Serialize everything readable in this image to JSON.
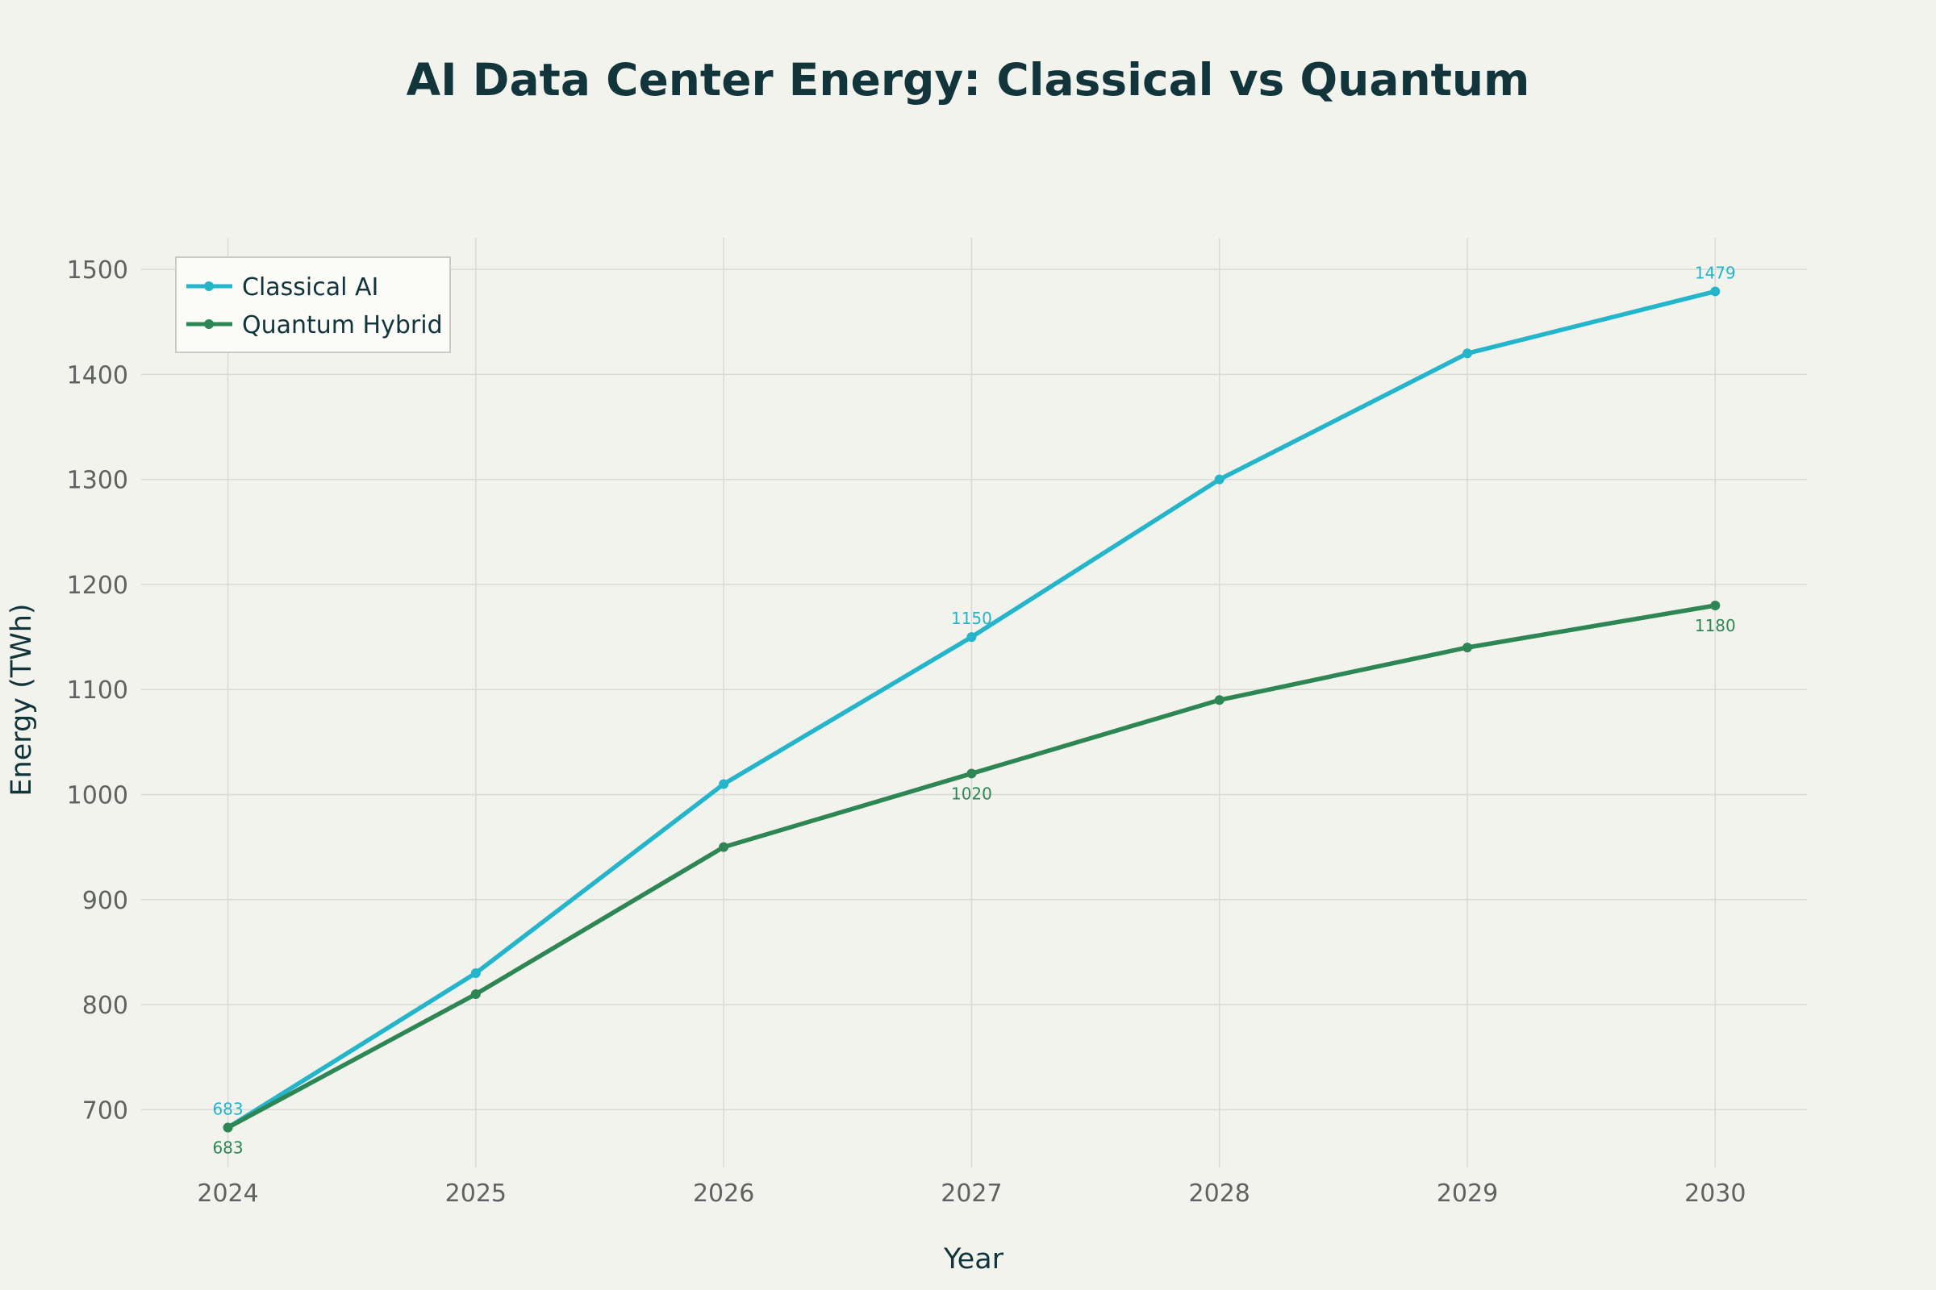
{
  "chart_data": {
    "type": "line",
    "title": "AI Data Center Energy: Classical vs Quantum",
    "xlabel": "Year",
    "ylabel": "Energy (TWh)",
    "categories": [
      "2024",
      "2025",
      "2026",
      "2027",
      "2028",
      "2029",
      "2030"
    ],
    "x": [
      2024,
      2025,
      2026,
      2027,
      2028,
      2029,
      2030
    ],
    "xlim": [
      2023.65,
      2030.37
    ],
    "ylim": [
      645,
      1530
    ],
    "yticks": [
      700,
      800,
      900,
      1000,
      1100,
      1200,
      1300,
      1400,
      1500
    ],
    "yticks_labels": [
      "700",
      "800",
      "900",
      "1000",
      "1100",
      "1200",
      "1300",
      "1400",
      "1500"
    ],
    "grid": true,
    "legend_position": "top-left",
    "series": [
      {
        "name": "Classical AI",
        "color": "#24b5ca",
        "values": [
          683,
          830,
          1010,
          1150,
          1300,
          1420,
          1479
        ],
        "labels": [
          {
            "index": 0,
            "text": "683",
            "position": "above"
          },
          {
            "index": 3,
            "text": "1150",
            "position": "above"
          },
          {
            "index": 6,
            "text": "1479",
            "position": "above"
          }
        ]
      },
      {
        "name": "Quantum Hybrid",
        "color": "#2e8654",
        "values": [
          683,
          810,
          950,
          1020,
          1090,
          1140,
          1180
        ],
        "labels": [
          {
            "index": 0,
            "text": "683",
            "position": "below"
          },
          {
            "index": 3,
            "text": "1020",
            "position": "below"
          },
          {
            "index": 6,
            "text": "1180",
            "position": "below"
          }
        ]
      }
    ]
  }
}
